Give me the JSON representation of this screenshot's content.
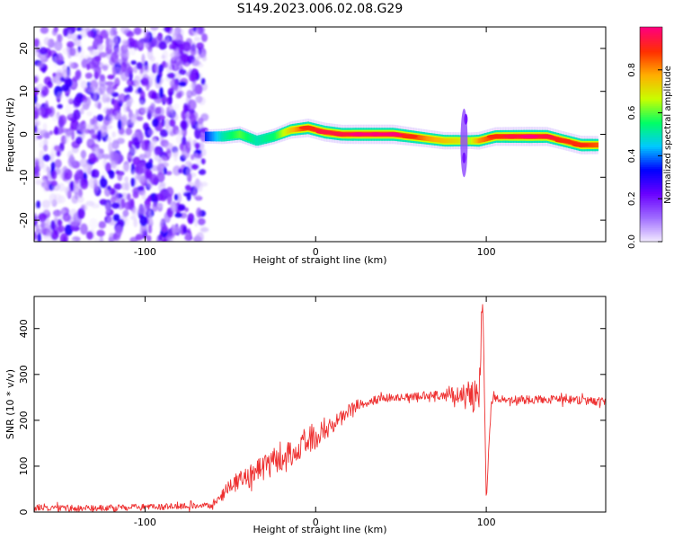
{
  "title": "S149.2023.006.02.08.G29",
  "colorbar": {
    "label": "Normalized spectral amplitude",
    "ticks": [
      "0.0",
      "0.2",
      "0.4",
      "0.6",
      "0.8"
    ],
    "tick_values": [
      0.0,
      0.2,
      0.4,
      0.6,
      0.8
    ],
    "range": [
      0.0,
      1.0
    ],
    "colors": [
      "#f0e8ff",
      "#9e6bff",
      "#6a00ff",
      "#0000ff",
      "#00c8ff",
      "#00ff66",
      "#c8ff00",
      "#ffb000",
      "#ff3000",
      "#ff007a"
    ]
  },
  "chart_data": [
    {
      "type": "heatmap",
      "xlabel": "Height of straight line (km)",
      "ylabel": "Frequency (Hz)",
      "xlim": [
        -165,
        170
      ],
      "ylim": [
        -25,
        25
      ],
      "xticks": [
        -100,
        0,
        100
      ],
      "yticks": [
        -20,
        -10,
        0,
        10,
        20
      ],
      "noise_region_x": [
        -165,
        -65
      ],
      "noise_amplitude_range": [
        0.0,
        0.3
      ],
      "ridge_region_x": [
        -65,
        170
      ],
      "ridge": {
        "x": [
          -65,
          -55,
          -45,
          -35,
          -25,
          -15,
          -5,
          5,
          15,
          25,
          35,
          45,
          55,
          65,
          75,
          85,
          90,
          95,
          105,
          115,
          125,
          135,
          145,
          155,
          165
        ],
        "frequency": [
          -0.5,
          -0.5,
          0.0,
          -1.5,
          -0.5,
          1.0,
          1.5,
          0.5,
          0.0,
          0.0,
          0.0,
          0.0,
          -0.5,
          -1.0,
          -1.5,
          -1.5,
          -1.5,
          -1.5,
          -0.5,
          -0.5,
          -0.5,
          -0.5,
          -1.5,
          -2.5,
          -2.5
        ],
        "amplitude": [
          0.35,
          0.5,
          0.6,
          0.5,
          0.55,
          0.75,
          0.9,
          0.95,
          0.95,
          1.0,
          1.0,
          1.0,
          0.9,
          0.8,
          0.75,
          0.7,
          0.65,
          0.8,
          0.9,
          0.95,
          1.0,
          0.95,
          0.9,
          0.9,
          0.85
        ]
      },
      "spike": {
        "x": 87,
        "frequency_range": [
          -10,
          6
        ]
      }
    },
    {
      "type": "line",
      "xlabel": "Height of straight line (km)",
      "ylabel": "SNR (10 * v/v)",
      "xlim": [
        -165,
        170
      ],
      "ylim": [
        0,
        470
      ],
      "xticks": [
        -100,
        0,
        100
      ],
      "yticks": [
        0,
        100,
        200,
        300,
        400
      ],
      "grid": false,
      "series": [
        {
          "color": "#ee3030",
          "x": [
            -165,
            -140,
            -110,
            -80,
            -60,
            -52,
            -45,
            -35,
            -25,
            -15,
            -5,
            5,
            15,
            25,
            40,
            55,
            70,
            85,
            92,
            96,
            98,
            100,
            103,
            110,
            130,
            150,
            170
          ],
          "y": [
            10,
            8,
            10,
            12,
            15,
            50,
            65,
            85,
            110,
            130,
            150,
            175,
            205,
            235,
            248,
            252,
            255,
            255,
            245,
            310,
            460,
            30,
            245,
            245,
            245,
            245,
            240
          ],
          "noise_amplitude": [
            7,
            7,
            7,
            7,
            7,
            14,
            22,
            28,
            35,
            30,
            28,
            25,
            18,
            12,
            9,
            9,
            9,
            20,
            45,
            90,
            10,
            10,
            12,
            9,
            9,
            9,
            9
          ]
        }
      ]
    }
  ]
}
